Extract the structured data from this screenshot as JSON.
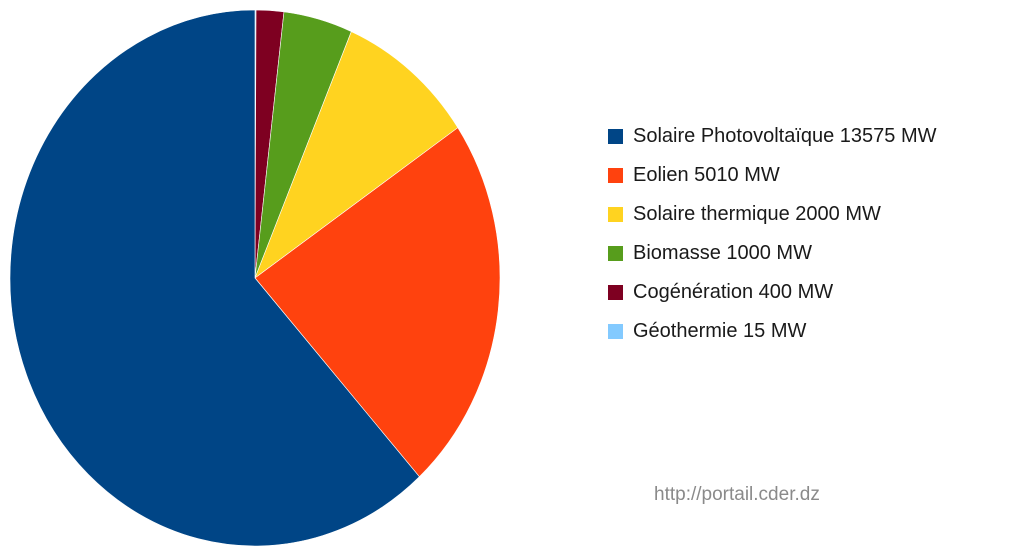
{
  "chart_data": {
    "type": "pie",
    "categories": [
      "Solaire Photovoltaïque",
      "Eolien",
      "Solaire thermique",
      "Biomasse",
      "Cogénération",
      "Géothermie"
    ],
    "values": [
      13575,
      5010,
      2000,
      1000,
      400,
      15
    ],
    "unit": "MW",
    "colors": [
      "#004586",
      "#ff420e",
      "#ffd320",
      "#579d1c",
      "#7e0021",
      "#83caff"
    ],
    "legend_labels": [
      "Solaire Photovoltaïque 13575 MW",
      "Eolien 5010 MW",
      "Solaire thermique 2000 MW",
      "Biomasse 1000 MW",
      "Cogénération 400 MW",
      "Géothermie 15 MW"
    ],
    "legend_position": "right",
    "start_angle": "top",
    "direction": "clockwise-from-smallest"
  },
  "source_note": "http://portail.cder.dz"
}
